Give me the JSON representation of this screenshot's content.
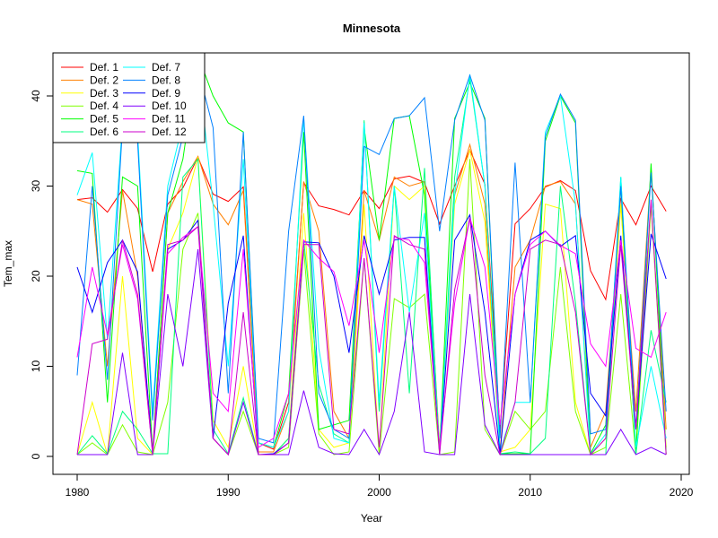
{
  "chart_data": {
    "type": "line",
    "title": "Minnesota",
    "xlabel": "Year",
    "ylabel": "Tem_max",
    "xlim": [
      1980,
      2020
    ],
    "ylim": [
      0,
      45
    ],
    "xticks": [
      1980,
      1990,
      2000,
      2010,
      2020
    ],
    "yticks": [
      0,
      10,
      20,
      30,
      40
    ],
    "legend_position": "top-left",
    "x": [
      1980,
      1981,
      1982,
      1983,
      1984,
      1985,
      1986,
      1987,
      1988,
      1989,
      1990,
      1991,
      1992,
      1993,
      1994,
      1995,
      1996,
      1997,
      1998,
      1999,
      2000,
      2001,
      2002,
      2003,
      2004,
      2005,
      2006,
      2007,
      2008,
      2009,
      2010,
      2011,
      2012,
      2013,
      2014,
      2015,
      2016,
      2017,
      2018,
      2019
    ],
    "series": [
      {
        "name": "Def. 1",
        "color": "#ff0000",
        "values": [
          28.5,
          28.7,
          27.1,
          29.6,
          27.5,
          20.5,
          28.0,
          29.8,
          33.2,
          29.1,
          28.3,
          29.9,
          1.5,
          0.8,
          6.0,
          30.4,
          27.8,
          27.4,
          26.8,
          29.5,
          27.5,
          30.8,
          31.1,
          30.4,
          25.8,
          30.0,
          34.0,
          30.2,
          3.0,
          25.8,
          27.5,
          29.9,
          30.6,
          29.5,
          20.6,
          17.4,
          28.6,
          25.7,
          30.0,
          27.2
        ]
      },
      {
        "name": "Def. 2",
        "color": "#ff8000",
        "values": [
          28.5,
          28.0,
          10.0,
          29.5,
          20.0,
          0.5,
          27.0,
          30.5,
          33.3,
          28.0,
          25.7,
          29.5,
          0.5,
          0.5,
          5.0,
          30.5,
          25.0,
          5.0,
          2.0,
          29.5,
          24.0,
          31.0,
          30.0,
          30.5,
          1.0,
          29.0,
          34.6,
          28.0,
          0.5,
          21.0,
          24.0,
          30.0,
          30.5,
          28.0,
          1.0,
          5.0,
          28.0,
          5.0,
          32.0,
          3.0
        ]
      },
      {
        "name": "Def. 3",
        "color": "#ffff00",
        "values": [
          0.2,
          6.0,
          0.2,
          20.0,
          2.0,
          0.2,
          23.0,
          27.0,
          33.2,
          4.0,
          1.0,
          10.0,
          0.2,
          0.2,
          2.0,
          27.0,
          3.0,
          1.0,
          1.5,
          28.0,
          0.5,
          30.0,
          28.5,
          30.0,
          0.5,
          28.0,
          34.0,
          26.0,
          0.5,
          1.0,
          3.0,
          28.0,
          27.5,
          6.0,
          0.2,
          2.0,
          28.0,
          1.0,
          28.0,
          1.0
        ]
      },
      {
        "name": "Def. 4",
        "color": "#80ff00",
        "values": [
          0.2,
          1.5,
          0.2,
          3.5,
          0.5,
          0.2,
          6.0,
          23.0,
          27.0,
          2.0,
          0.2,
          5.0,
          0.2,
          0.2,
          1.0,
          23.0,
          2.5,
          0.2,
          0.5,
          22.0,
          0.2,
          17.5,
          16.5,
          18.0,
          0.2,
          0.5,
          33.0,
          3.0,
          0.2,
          5.0,
          3.0,
          5.0,
          21.0,
          5.0,
          0.2,
          1.0,
          18.0,
          0.2,
          28.0,
          0.2
        ]
      },
      {
        "name": "Def. 5",
        "color": "#00ff00",
        "values": [
          31.7,
          31.4,
          6.0,
          31.0,
          30.0,
          0.3,
          27.0,
          33.0,
          44.5,
          40.0,
          37.0,
          36.0,
          1.5,
          1.0,
          7.0,
          36.0,
          3.0,
          3.5,
          4.0,
          36.5,
          24.0,
          37.5,
          37.8,
          29.0,
          0.5,
          37.5,
          41.5,
          37.5,
          0.3,
          0.3,
          0.3,
          35.0,
          40.0,
          37.0,
          0.3,
          3.5,
          30.0,
          0.3,
          32.5,
          0.3
        ]
      },
      {
        "name": "Def. 6",
        "color": "#00ff80",
        "values": [
          0.2,
          2.3,
          0.3,
          5.0,
          3.0,
          0.3,
          0.3,
          31.0,
          33.0,
          3.0,
          0.3,
          6.5,
          0.2,
          0.2,
          2.0,
          24.0,
          8.0,
          2.5,
          1.5,
          37.3,
          5.0,
          30.0,
          7.0,
          32.0,
          0.3,
          31.0,
          42.0,
          30.0,
          0.3,
          0.5,
          0.3,
          2.0,
          30.0,
          17.0,
          0.2,
          0.2,
          31.0,
          0.2,
          14.0,
          6.0
        ]
      },
      {
        "name": "Def. 7",
        "color": "#00ffff",
        "values": [
          29.0,
          33.7,
          13.0,
          37.0,
          36.0,
          5.0,
          30.0,
          37.0,
          43.5,
          28.0,
          10.0,
          33.0,
          1.5,
          1.0,
          5.0,
          37.5,
          12.0,
          2.0,
          1.5,
          37.0,
          6.0,
          30.0,
          16.0,
          27.0,
          0.5,
          29.0,
          42.4,
          30.0,
          0.5,
          6.0,
          6.0,
          36.0,
          40.0,
          28.0,
          0.2,
          2.5,
          31.0,
          1.0,
          10.0,
          2.0
        ]
      },
      {
        "name": "Def. 8",
        "color": "#0080ff",
        "values": [
          9.0,
          30.0,
          8.5,
          36.5,
          35.0,
          4.0,
          29.0,
          35.5,
          43.0,
          36.5,
          7.0,
          36.0,
          2.0,
          1.5,
          25.0,
          37.8,
          7.0,
          3.0,
          2.0,
          34.4,
          33.5,
          37.5,
          37.8,
          39.8,
          25.0,
          37.3,
          42.3,
          37.3,
          2.0,
          32.6,
          6.0,
          35.5,
          40.2,
          37.3,
          2.5,
          3.0,
          30.0,
          3.0,
          31.5,
          5.0
        ]
      },
      {
        "name": "Def. 9",
        "color": "#0000ff",
        "values": [
          21.0,
          16.0,
          21.5,
          24.0,
          20.5,
          0.3,
          23.0,
          24.0,
          26.2,
          2.0,
          17.0,
          24.5,
          0.2,
          0.3,
          1.5,
          23.8,
          23.7,
          20.0,
          11.5,
          24.5,
          18.0,
          24.0,
          24.3,
          24.3,
          0.3,
          24.0,
          26.8,
          16.0,
          0.3,
          18.0,
          24.0,
          25.0,
          23.3,
          24.5,
          7.0,
          4.5,
          24.5,
          3.0,
          24.7,
          19.7
        ]
      },
      {
        "name": "Def. 10",
        "color": "#8000ff",
        "values": [
          0.2,
          0.2,
          0.2,
          11.5,
          0.2,
          0.2,
          18.0,
          10.0,
          23.0,
          2.0,
          0.2,
          6.0,
          0.2,
          0.2,
          0.2,
          7.3,
          1.0,
          0.3,
          0.2,
          3.0,
          0.2,
          5.0,
          16.0,
          0.5,
          0.2,
          0.2,
          18.0,
          3.5,
          0.2,
          0.2,
          0.2,
          0.2,
          0.2,
          0.2,
          0.2,
          0.2,
          3.0,
          0.2,
          1.0,
          0.2
        ]
      },
      {
        "name": "Def. 11",
        "color": "#ff00ff",
        "values": [
          11.0,
          21.0,
          13.5,
          23.5,
          17.5,
          0.3,
          22.5,
          24.3,
          25.5,
          7.0,
          5.0,
          23.0,
          1.0,
          2.0,
          7.0,
          24.0,
          22.0,
          20.5,
          14.5,
          24.0,
          11.5,
          24.3,
          24.0,
          21.5,
          0.8,
          17.0,
          26.5,
          21.0,
          3.5,
          18.0,
          23.5,
          25.0,
          23.4,
          22.5,
          12.5,
          10.0,
          24.0,
          12.0,
          11.0,
          16.0
        ]
      },
      {
        "name": "Def. 12",
        "color": "#cc00cc",
        "values": [
          0.2,
          12.5,
          13.0,
          24.0,
          18.0,
          0.2,
          23.5,
          24.0,
          25.5,
          2.0,
          0.2,
          16.0,
          0.2,
          0.2,
          1.5,
          23.5,
          23.5,
          3.0,
          2.5,
          22.0,
          1.0,
          24.5,
          23.5,
          23.0,
          0.2,
          18.5,
          26.5,
          9.0,
          0.2,
          6.0,
          23.0,
          24.0,
          23.5,
          16.0,
          0.2,
          2.0,
          23.5,
          3.0,
          28.5,
          0.2
        ]
      }
    ]
  }
}
